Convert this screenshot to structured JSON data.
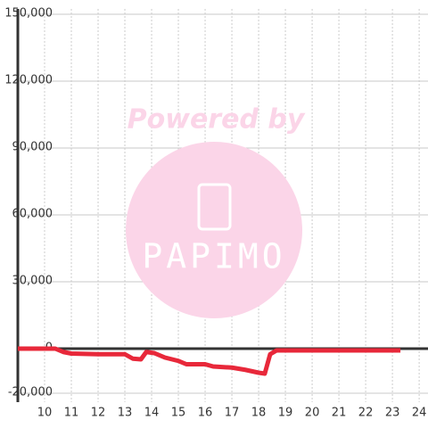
{
  "chart_data": {
    "type": "line",
    "watermark": [
      "Powered by",
      "PAPIMO"
    ],
    "x": [
      9,
      10.4,
      10.7,
      11,
      12,
      13,
      13.3,
      13.6,
      13.8,
      14.1,
      14.5,
      15,
      15.3,
      16,
      16.3,
      17,
      17.5,
      18,
      18.23,
      18.43,
      18.67,
      23.3
    ],
    "series": [
      {
        "color": "#e8283a",
        "values": [
          0,
          0,
          -1500,
          -2200,
          -2500,
          -2500,
          -4500,
          -4800,
          -1500,
          -2000,
          -4000,
          -5500,
          -7000,
          -7000,
          -8000,
          -8500,
          -9500,
          -10800,
          -11200,
          -2500,
          -800,
          -800
        ]
      }
    ],
    "xlim": [
      9,
      24.33
    ],
    "xticks": [
      10,
      11,
      12,
      13,
      14,
      15,
      16,
      17,
      18,
      19,
      20,
      21,
      22,
      23,
      24
    ],
    "ylim": [
      -24000,
      152400
    ],
    "yticks": [
      {
        "value": -20000,
        "label": "-20,000"
      },
      0,
      {
        "value": 30000,
        "label": "30,000"
      },
      {
        "value": 60000,
        "label": "60,000"
      },
      {
        "value": 90000,
        "label": "90,000"
      },
      {
        "value": 120000,
        "label": "120,000"
      },
      {
        "value": 150000,
        "label": "150,000"
      }
    ],
    "grid": true
  }
}
